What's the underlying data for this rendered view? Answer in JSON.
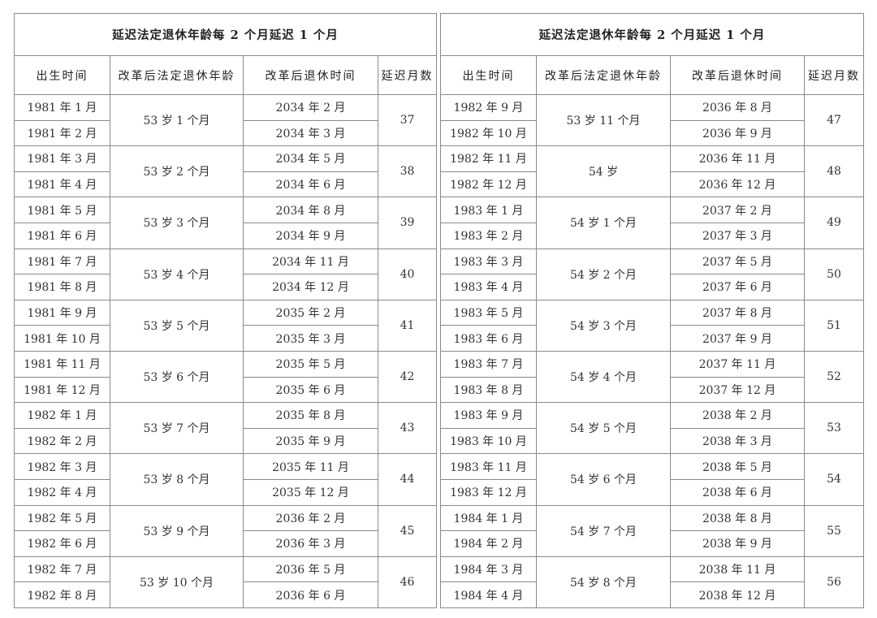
{
  "tables": [
    {
      "title": "延迟法定退休年龄每 2 个月延迟 1 个月",
      "headers": [
        "出生时间",
        "改革后法定退休年龄",
        "改革后退休时间",
        "延迟月数"
      ],
      "groups": [
        {
          "births": [
            "1981 年 1 月",
            "1981 年 2 月"
          ],
          "age": "53 岁 1 个月",
          "times": [
            "2034 年 2 月",
            "2034 年 3 月"
          ],
          "months": "37"
        },
        {
          "births": [
            "1981 年 3 月",
            "1981 年 4 月"
          ],
          "age": "53 岁 2 个月",
          "times": [
            "2034 年 5 月",
            "2034 年 6 月"
          ],
          "months": "38"
        },
        {
          "births": [
            "1981 年 5 月",
            "1981 年 6 月"
          ],
          "age": "53 岁 3 个月",
          "times": [
            "2034 年 8 月",
            "2034 年 9 月"
          ],
          "months": "39"
        },
        {
          "births": [
            "1981 年 7 月",
            "1981 年 8 月"
          ],
          "age": "53 岁 4 个月",
          "times": [
            "2034 年 11 月",
            "2034 年 12 月"
          ],
          "months": "40"
        },
        {
          "births": [
            "1981 年 9 月",
            "1981 年 10 月"
          ],
          "age": "53 岁 5 个月",
          "times": [
            "2035 年 2 月",
            "2035 年 3 月"
          ],
          "months": "41"
        },
        {
          "births": [
            "1981 年 11 月",
            "1981 年 12 月"
          ],
          "age": "53 岁 6 个月",
          "times": [
            "2035 年 5 月",
            "2035 年 6 月"
          ],
          "months": "42"
        },
        {
          "births": [
            "1982 年 1 月",
            "1982 年 2 月"
          ],
          "age": "53 岁 7 个月",
          "times": [
            "2035 年 8 月",
            "2035 年 9 月"
          ],
          "months": "43"
        },
        {
          "births": [
            "1982 年 3 月",
            "1982 年 4 月"
          ],
          "age": "53 岁 8 个月",
          "times": [
            "2035 年 11 月",
            "2035 年 12 月"
          ],
          "months": "44"
        },
        {
          "births": [
            "1982 年 5 月",
            "1982 年 6 月"
          ],
          "age": "53 岁 9 个月",
          "times": [
            "2036 年 2 月",
            "2036 年 3 月"
          ],
          "months": "45"
        },
        {
          "births": [
            "1982 年 7 月",
            "1982 年 8 月"
          ],
          "age": "53 岁 10 个月",
          "times": [
            "2036 年 5 月",
            "2036 年 6 月"
          ],
          "months": "46"
        }
      ]
    },
    {
      "title": "延迟法定退休年龄每 2 个月延迟 1 个月",
      "headers": [
        "出生时间",
        "改革后法定退休年龄",
        "改革后退休时间",
        "延迟月数"
      ],
      "groups": [
        {
          "births": [
            "1982 年 9 月",
            "1982 年 10 月"
          ],
          "age": "53 岁 11 个月",
          "times": [
            "2036 年 8 月",
            "2036 年 9 月"
          ],
          "months": "47"
        },
        {
          "births": [
            "1982 年 11 月",
            "1982 年 12 月"
          ],
          "age": "54 岁",
          "times": [
            "2036 年 11 月",
            "2036 年 12 月"
          ],
          "months": "48"
        },
        {
          "births": [
            "1983 年 1 月",
            "1983 年 2 月"
          ],
          "age": "54 岁 1 个月",
          "times": [
            "2037 年 2 月",
            "2037 年 3 月"
          ],
          "months": "49"
        },
        {
          "births": [
            "1983 年 3 月",
            "1983 年 4 月"
          ],
          "age": "54 岁 2 个月",
          "times": [
            "2037 年 5 月",
            "2037 年 6 月"
          ],
          "months": "50"
        },
        {
          "births": [
            "1983 年 5 月",
            "1983 年 6 月"
          ],
          "age": "54 岁 3 个月",
          "times": [
            "2037 年 8 月",
            "2037 年 9 月"
          ],
          "months": "51"
        },
        {
          "births": [
            "1983 年 7 月",
            "1983 年 8 月"
          ],
          "age": "54 岁 4 个月",
          "times": [
            "2037 年 11 月",
            "2037 年 12 月"
          ],
          "months": "52"
        },
        {
          "births": [
            "1983 年 9 月",
            "1983 年 10 月"
          ],
          "age": "54 岁 5 个月",
          "times": [
            "2038 年 2 月",
            "2038 年 3 月"
          ],
          "months": "53"
        },
        {
          "births": [
            "1983 年 11 月",
            "1983 年 12 月"
          ],
          "age": "54 岁 6 个月",
          "times": [
            "2038 年 5 月",
            "2038 年 6 月"
          ],
          "months": "54"
        },
        {
          "births": [
            "1984 年 1 月",
            "1984 年 2 月"
          ],
          "age": "54 岁 7 个月",
          "times": [
            "2038 年 8 月",
            "2038 年 9 月"
          ],
          "months": "55"
        },
        {
          "births": [
            "1984 年 3 月",
            "1984 年 4 月"
          ],
          "age": "54 岁 8 个月",
          "times": [
            "2038 年 11 月",
            "2038 年 12 月"
          ],
          "months": "56"
        }
      ]
    }
  ]
}
